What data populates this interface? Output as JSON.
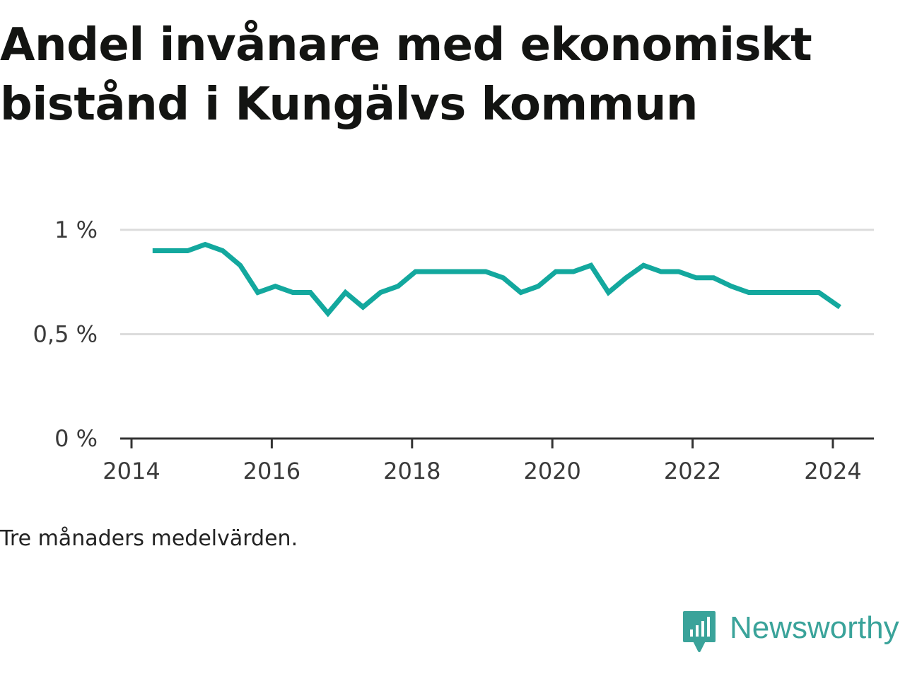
{
  "title": "Andel invånare med ekonomiskt bistånd i Kungälvs kommun",
  "footnote": "Tre månaders medelvärden.",
  "brand": {
    "name": "Newsworthy",
    "icon": "bar-chart-speech-bubble-icon",
    "color": "#3aa39a"
  },
  "colors": {
    "line": "#13a89e",
    "grid": "#dcdcdc",
    "axis": "#333333"
  },
  "chart_data": {
    "type": "line",
    "title": "Andel invånare med ekonomiskt bistånd i Kungälvs kommun",
    "xlabel": "",
    "ylabel": "",
    "x_ticks": [
      "2014",
      "2016",
      "2018",
      "2020",
      "2022",
      "2024"
    ],
    "y_ticks": [
      "0 %",
      "0,5 %",
      "1 %"
    ],
    "y_tick_values": [
      0,
      0.5,
      1
    ],
    "ylim": [
      0,
      1
    ],
    "xlim": [
      2013.7,
      2024.6
    ],
    "grid": true,
    "series": [
      {
        "x": [
          2014.3,
          2014.55,
          2014.8,
          2015.05,
          2015.3,
          2015.55,
          2015.8,
          2016.05,
          2016.3,
          2016.55,
          2016.8,
          2017.05,
          2017.3,
          2017.55,
          2017.8,
          2018.05,
          2018.3,
          2018.55,
          2018.8,
          2019.05,
          2019.3,
          2019.55,
          2019.8,
          2020.05,
          2020.3,
          2020.55,
          2020.8,
          2021.05,
          2021.3,
          2021.55,
          2021.8,
          2022.05,
          2022.3,
          2022.55,
          2022.8,
          2023.05,
          2023.3,
          2023.55,
          2023.8,
          2024.1
        ],
        "values": [
          0.9,
          0.9,
          0.9,
          0.93,
          0.9,
          0.83,
          0.7,
          0.73,
          0.7,
          0.7,
          0.6,
          0.7,
          0.63,
          0.7,
          0.73,
          0.8,
          0.8,
          0.8,
          0.8,
          0.8,
          0.77,
          0.7,
          0.73,
          0.8,
          0.8,
          0.83,
          0.7,
          0.77,
          0.83,
          0.8,
          0.8,
          0.77,
          0.77,
          0.73,
          0.7,
          0.7,
          0.7,
          0.7,
          0.7,
          0.63
        ]
      }
    ]
  }
}
